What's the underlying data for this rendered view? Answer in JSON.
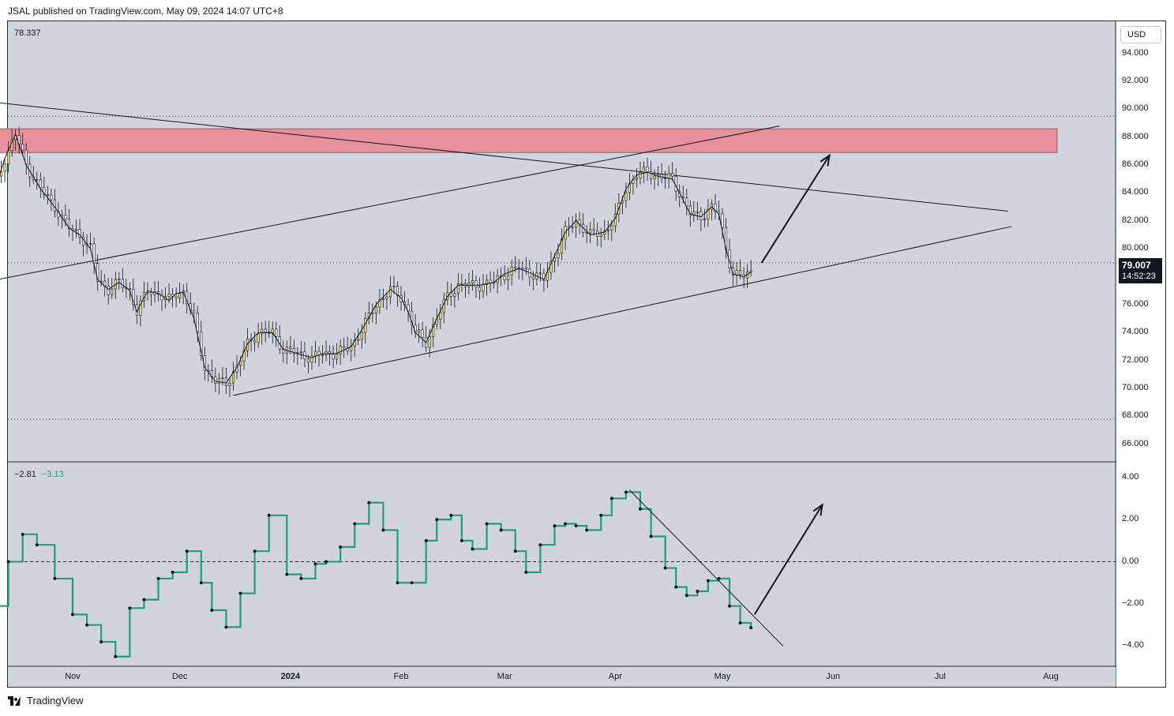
{
  "header": {
    "text": "JSAL published on TradingView.com, May 09, 2024 14:07 UTC+8"
  },
  "footer": {
    "brand": "TradingView",
    "logo_icon": "tradingview-logo-icon"
  },
  "currency_button": {
    "label": "USD"
  },
  "price_tag": {
    "price": "79.007",
    "countdown": "14:52:23"
  },
  "colors": {
    "bull": "#fde96a",
    "bear": "#ffffff",
    "osc": "#1f9e7a",
    "zone": "#e6919b"
  },
  "chart_data": [
    {
      "type": "candlestick",
      "title": "",
      "readout": "78.337",
      "ylim": [
        64.8,
        96.3
      ],
      "y_ticks": [
        "94.000",
        "92.000",
        "90.000",
        "88.000",
        "86.000",
        "84.000",
        "82.000",
        "80.000",
        "78.000",
        "76.000",
        "74.000",
        "72.000",
        "70.000",
        "68.000",
        "66.000"
      ],
      "x_ticks": [
        {
          "date": "2023-11-01",
          "label": "Nov"
        },
        {
          "date": "2023-12-01",
          "label": "Dec"
        },
        {
          "date": "2024-01-01",
          "label": "2024"
        },
        {
          "date": "2024-02-01",
          "label": "Feb"
        },
        {
          "date": "2024-03-01",
          "label": "Mar"
        },
        {
          "date": "2024-04-01",
          "label": "Apr"
        },
        {
          "date": "2024-05-01",
          "label": "May"
        },
        {
          "date": "2024-06-01",
          "label": "Jun"
        },
        {
          "date": "2024-07-01",
          "label": "Jul"
        },
        {
          "date": "2024-08-01",
          "label": "Aug"
        }
      ],
      "price_path": [
        [
          "2023-10-10",
          84.0
        ],
        [
          "2023-10-13",
          86.5
        ],
        [
          "2023-10-16",
          88.2
        ],
        [
          "2023-10-19",
          86.0
        ],
        [
          "2023-10-23",
          84.3
        ],
        [
          "2023-10-27",
          83.0
        ],
        [
          "2023-10-31",
          81.5
        ],
        [
          "2023-11-03",
          81.0
        ],
        [
          "2023-11-06",
          80.0
        ],
        [
          "2023-11-08",
          77.8
        ],
        [
          "2023-11-11",
          77.1
        ],
        [
          "2023-11-14",
          77.6
        ],
        [
          "2023-11-17",
          77.0
        ],
        [
          "2023-11-19",
          75.5
        ],
        [
          "2023-11-22",
          77.0
        ],
        [
          "2023-11-25",
          76.8
        ],
        [
          "2023-11-28",
          76.3
        ],
        [
          "2023-11-30",
          76.8
        ],
        [
          "2023-12-02",
          76.9
        ],
        [
          "2023-12-05",
          75.0
        ],
        [
          "2023-12-08",
          71.5
        ],
        [
          "2023-12-11",
          70.5
        ],
        [
          "2023-12-14",
          70.4
        ],
        [
          "2023-12-17",
          71.5
        ],
        [
          "2023-12-20",
          73.2
        ],
        [
          "2023-12-23",
          74.0
        ],
        [
          "2023-12-27",
          74.0
        ],
        [
          "2023-12-30",
          72.8
        ],
        [
          "2024-01-03",
          72.5
        ],
        [
          "2024-01-07",
          72.2
        ],
        [
          "2024-01-10",
          72.5
        ],
        [
          "2024-01-14",
          72.5
        ],
        [
          "2024-01-18",
          73.0
        ],
        [
          "2024-01-21",
          74.2
        ],
        [
          "2024-01-25",
          76.0
        ],
        [
          "2024-01-29",
          77.1
        ],
        [
          "2024-02-01",
          76.5
        ],
        [
          "2024-02-03",
          75.5
        ],
        [
          "2024-02-05",
          74.0
        ],
        [
          "2024-02-08",
          73.3
        ],
        [
          "2024-02-11",
          75.0
        ],
        [
          "2024-02-14",
          76.6
        ],
        [
          "2024-02-17",
          77.4
        ],
        [
          "2024-02-20",
          77.4
        ],
        [
          "2024-02-23",
          77.4
        ],
        [
          "2024-02-27",
          77.6
        ],
        [
          "2024-03-01",
          78.2
        ],
        [
          "2024-03-05",
          78.6
        ],
        [
          "2024-03-08",
          78.3
        ],
        [
          "2024-03-12",
          77.8
        ],
        [
          "2024-03-15",
          79.5
        ],
        [
          "2024-03-18",
          81.2
        ],
        [
          "2024-03-21",
          82.0
        ],
        [
          "2024-03-25",
          81.0
        ],
        [
          "2024-03-29",
          81.2
        ],
        [
          "2024-04-01",
          82.2
        ],
        [
          "2024-04-04",
          84.3
        ],
        [
          "2024-04-07",
          85.3
        ],
        [
          "2024-04-10",
          85.5
        ],
        [
          "2024-04-13",
          85.2
        ],
        [
          "2024-04-17",
          85.0
        ],
        [
          "2024-04-19",
          84.0
        ],
        [
          "2024-04-22",
          82.5
        ],
        [
          "2024-04-25",
          82.3
        ],
        [
          "2024-04-28",
          83.0
        ],
        [
          "2024-04-30",
          82.5
        ],
        [
          "2024-05-02",
          80.0
        ],
        [
          "2024-05-04",
          78.2
        ],
        [
          "2024-05-07",
          78.0
        ],
        [
          "2024-05-09",
          78.34
        ]
      ],
      "zone": {
        "from": "2023-10-10",
        "to": "2024-08-01",
        "top": 88.6,
        "bottom": 86.9
      },
      "resistance_line": [
        [
          "2023-09-29",
          90.8
        ],
        [
          "2024-07-20",
          82.7
        ]
      ],
      "support_line": [
        [
          "2023-12-16",
          69.5
        ],
        [
          "2024-07-21",
          81.6
        ]
      ],
      "outer_support_line": [
        [
          "2023-09-29",
          77.2
        ],
        [
          "2024-05-17",
          88.8
        ]
      ],
      "projection_arrow": [
        [
          "2024-05-12",
          79.0
        ],
        [
          "2024-05-31",
          86.7
        ]
      ],
      "dotted_levels": [
        89.5,
        79.0,
        67.8
      ]
    },
    {
      "type": "line",
      "title": "",
      "readout": [
        "−2.81",
        "−3.13"
      ],
      "ylim": [
        -4.92,
        4.7
      ],
      "y_ticks": [
        "4.00",
        "2.00",
        "0.00",
        "−2.00",
        "−4.00"
      ],
      "zero_line": 0,
      "series": [
        {
          "values": [
            [
              "2023-10-10",
              -2.1
            ],
            [
              "2023-10-14",
              0.0
            ],
            [
              "2023-10-18",
              1.3
            ],
            [
              "2023-10-22",
              0.8
            ],
            [
              "2023-10-27",
              -0.8
            ],
            [
              "2023-11-01",
              -2.5
            ],
            [
              "2023-11-05",
              -3.0
            ],
            [
              "2023-11-09",
              -3.8
            ],
            [
              "2023-11-13",
              -4.5
            ],
            [
              "2023-11-17",
              -2.2
            ],
            [
              "2023-11-21",
              -1.8
            ],
            [
              "2023-11-25",
              -0.8
            ],
            [
              "2023-11-29",
              -0.5
            ],
            [
              "2023-12-03",
              0.5
            ],
            [
              "2023-12-07",
              -1.0
            ],
            [
              "2023-12-10",
              -2.3
            ],
            [
              "2023-12-14",
              -3.1
            ],
            [
              "2023-12-18",
              -1.5
            ],
            [
              "2023-12-22",
              0.5
            ],
            [
              "2023-12-26",
              2.2
            ],
            [
              "2023-12-31",
              -0.6
            ],
            [
              "2024-01-04",
              -0.8
            ],
            [
              "2024-01-08",
              -0.1
            ],
            [
              "2024-01-11",
              0.0
            ],
            [
              "2024-01-15",
              0.7
            ],
            [
              "2024-01-19",
              1.8
            ],
            [
              "2024-01-23",
              2.8
            ],
            [
              "2024-01-27",
              1.5
            ],
            [
              "2024-01-31",
              -1.0
            ],
            [
              "2024-02-04",
              -1.0
            ],
            [
              "2024-02-08",
              1.0
            ],
            [
              "2024-02-11",
              2.0
            ],
            [
              "2024-02-15",
              2.2
            ],
            [
              "2024-02-18",
              1.0
            ],
            [
              "2024-02-21",
              0.6
            ],
            [
              "2024-02-25",
              1.8
            ],
            [
              "2024-02-29",
              1.5
            ],
            [
              "2024-03-04",
              0.5
            ],
            [
              "2024-03-07",
              -0.5
            ],
            [
              "2024-03-11",
              0.8
            ],
            [
              "2024-03-15",
              1.7
            ],
            [
              "2024-03-18",
              1.8
            ],
            [
              "2024-03-21",
              1.7
            ],
            [
              "2024-03-24",
              1.5
            ],
            [
              "2024-03-28",
              2.2
            ],
            [
              "2024-03-31",
              3.0
            ],
            [
              "2024-04-04",
              3.3
            ],
            [
              "2024-04-08",
              2.5
            ],
            [
              "2024-04-11",
              1.2
            ],
            [
              "2024-04-15",
              -0.3
            ],
            [
              "2024-04-18",
              -1.2
            ],
            [
              "2024-04-21",
              -1.6
            ],
            [
              "2024-04-24",
              -1.4
            ],
            [
              "2024-04-27",
              -0.9
            ],
            [
              "2024-04-30",
              -0.8
            ],
            [
              "2024-05-03",
              -2.1
            ],
            [
              "2024-05-06",
              -2.9
            ],
            [
              "2024-05-09",
              -3.13
            ]
          ]
        }
      ],
      "trend_line": [
        [
          "2024-04-05",
          3.4
        ],
        [
          "2024-05-18",
          -4.0
        ]
      ],
      "projection_arrow": [
        [
          "2024-05-10",
          -2.5
        ],
        [
          "2024-05-29",
          2.7
        ]
      ]
    }
  ]
}
